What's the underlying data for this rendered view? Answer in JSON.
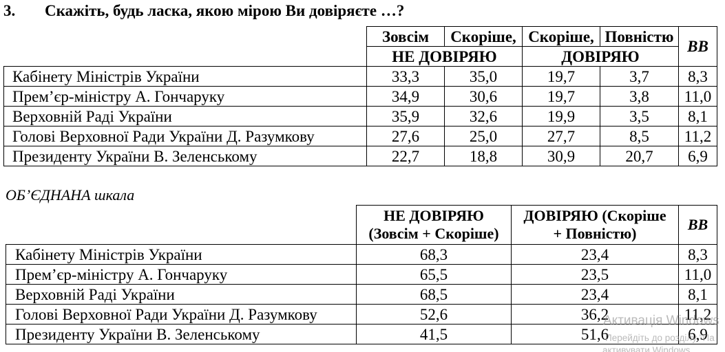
{
  "question": {
    "number": "3.",
    "text": "Скажіть, будь ласка, якою мірою Ви довіряєте …?"
  },
  "table1": {
    "header": {
      "fully_distrust": "Зовсім",
      "rather_distrust": "Скоріше,",
      "rather_trust": "Скоріше,",
      "fully_trust": "Повністю",
      "distrust_group": "НЕ ДОВІРЯЮ",
      "trust_group": "ДОВІРЯЮ",
      "dont_know": "ВВ"
    },
    "rows": [
      {
        "label": "Кабінету Міністрів України",
        "values": [
          "33,3",
          "35,0",
          "19,7",
          "3,7",
          "8,3"
        ]
      },
      {
        "label": "Прем’єр-міністру А. Гончаруку",
        "values": [
          "34,9",
          "30,6",
          "19,7",
          "3,8",
          "11,0"
        ]
      },
      {
        "label": "Верховній Раді України",
        "values": [
          "35,9",
          "32,6",
          "19,9",
          "3,5",
          "8,1"
        ]
      },
      {
        "label": "Голові Верховної Ради України Д. Разумкову",
        "values": [
          "27,6",
          "25,0",
          "27,7",
          "8,5",
          "11,2"
        ]
      },
      {
        "label": "Президенту України В. Зеленському",
        "values": [
          "22,7",
          "18,8",
          "30,9",
          "20,7",
          "6,9"
        ]
      }
    ]
  },
  "combined_scale": {
    "title": "ОБ’ЄДНАНА шкала",
    "header": {
      "distrust_lines": [
        "НЕ ДОВІРЯЮ",
        "(Зовсім + Скоріше)"
      ],
      "trust_lines": [
        "ДОВІРЯЮ (Скоріше",
        "+ Повністю)"
      ],
      "dont_know": "ВВ"
    },
    "rows": [
      {
        "label": "Кабінету Міністрів України",
        "values": [
          "68,3",
          "23,4",
          "8,3"
        ]
      },
      {
        "label": "Прем’єр-міністру А. Гончаруку",
        "values": [
          "65,5",
          "23,5",
          "11,0"
        ]
      },
      {
        "label": "Верховній Раді України",
        "values": [
          "68,5",
          "23,4",
          "8,1"
        ]
      },
      {
        "label": "Голові Верховної Ради України Д. Разумкову",
        "values": [
          "52,6",
          "36,2",
          "11,2"
        ]
      },
      {
        "label": "Президенту України В. Зеленському",
        "values": [
          "41,5",
          "51,6",
          "6,9"
        ]
      }
    ]
  },
  "watermark": {
    "title": "Активація Windows",
    "line2": "Перейдіть до розділу \"Па",
    "line3": "активувати Windows"
  }
}
